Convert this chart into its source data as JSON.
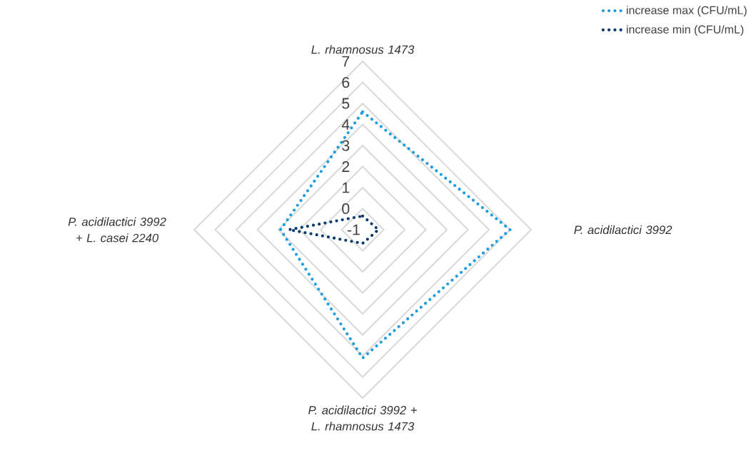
{
  "chart_data": {
    "type": "radar",
    "categories": [
      "L. rhamnosus 1473",
      "P. acidilactici 3992",
      "P. acidilactici 3992 + L. rhamnosus 1473",
      "P. acidilactici 3992 + L. casei 2240"
    ],
    "series": [
      {
        "name": "increase max (CFU/mL)",
        "color": "#1f9ede",
        "values": [
          4.6,
          6.0,
          5.1,
          2.9
        ]
      },
      {
        "name": "increase min (CFU/mL)",
        "color": "#0b3a6e",
        "values": [
          -0.35,
          -0.25,
          -0.35,
          2.5
        ]
      }
    ],
    "ylim": [
      -1,
      7
    ],
    "yticks": [
      {
        "value": -1,
        "label": "-1"
      },
      0,
      1,
      2,
      3,
      4,
      5,
      6,
      7
    ],
    "grid": true,
    "legend": "top right",
    "marker": "none",
    "line_style": "dotted"
  }
}
